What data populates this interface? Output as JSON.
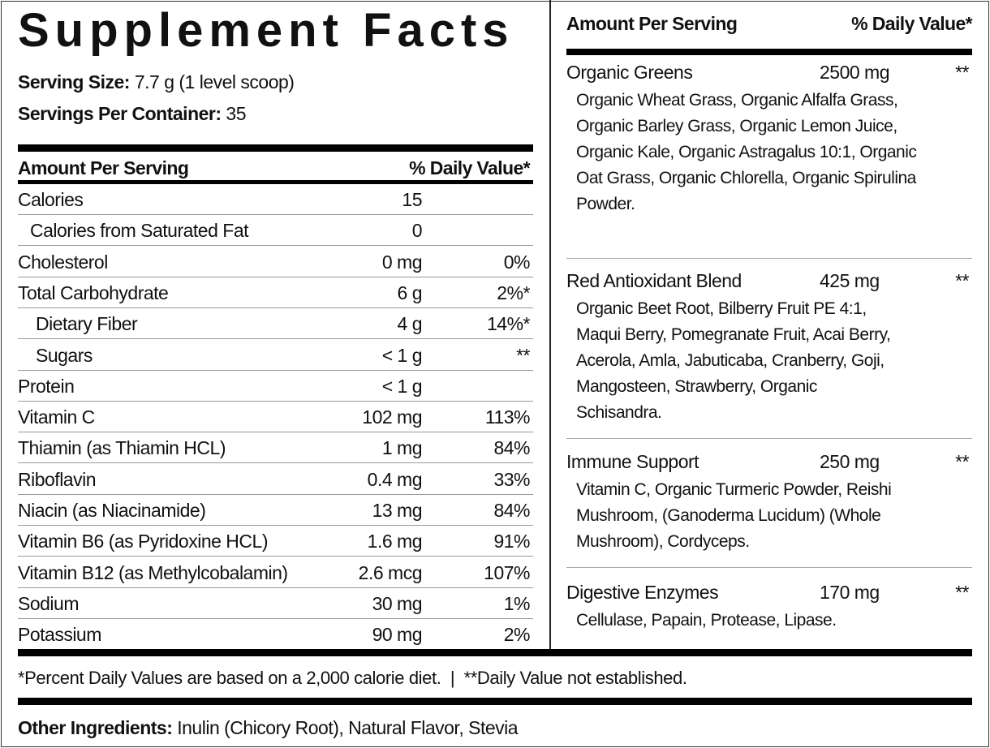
{
  "title": "Supplement Facts",
  "serving_size": {
    "label": "Serving Size:",
    "value": "7.7 g (1 level scoop)"
  },
  "servings_per_container": {
    "label": "Servings Per Container:",
    "value": "35"
  },
  "left_header": {
    "amount": "Amount Per Serving",
    "dv": "% Daily Value*"
  },
  "rows": [
    {
      "name": "Calories",
      "amount": "15",
      "dv": ""
    },
    {
      "name": "Calories from Saturated Fat",
      "amount": "0",
      "dv": "",
      "indent": true
    },
    {
      "name": "Cholesterol",
      "amount": "0 mg",
      "dv": "0%"
    },
    {
      "name": "Total Carbohydrate",
      "amount": "6 g",
      "dv": "2%*"
    },
    {
      "name": "Dietary Fiber",
      "amount": "4 g",
      "dv": "14%*",
      "indent": true
    },
    {
      "name": "Sugars",
      "amount": "< 1 g",
      "dv": "**",
      "indent": true
    },
    {
      "name": "Protein",
      "amount": "< 1 g",
      "dv": ""
    },
    {
      "name": "Vitamin C",
      "amount": "102 mg",
      "dv": "113%"
    },
    {
      "name": "Thiamin (as Thiamin HCL)",
      "amount": "1 mg",
      "dv": "84%"
    },
    {
      "name": "Riboflavin",
      "amount": "0.4 mg",
      "dv": "33%"
    },
    {
      "name": "Niacin (as Niacinamide)",
      "amount": "13 mg",
      "dv": "84%"
    },
    {
      "name": "Vitamin B6 (as Pyridoxine HCL)",
      "amount": "1.6 mg",
      "dv": "91%"
    },
    {
      "name": "Vitamin B12 (as Methylcobalamin)",
      "amount": "2.6 mcg",
      "dv": "107%"
    },
    {
      "name": "Sodium",
      "amount": "30 mg",
      "dv": "1%"
    },
    {
      "name": "Potassium",
      "amount": "90 mg",
      "dv": "2%"
    }
  ],
  "right_header": {
    "amount": "Amount Per Serving",
    "dv": "% Daily Value*"
  },
  "blends": [
    {
      "name": "Organic Greens",
      "amount": "2500 mg",
      "dv": "**",
      "ingredients": "Organic Wheat Grass, Organic Alfalfa Grass, Organic Barley Grass, Organic Lemon Juice, Organic Kale, Organic Astragalus 10:1, Organic Oat Grass, Organic Chlorella, Organic Spirulina Powder."
    },
    {
      "name": "Red Antioxidant Blend",
      "amount": "425 mg",
      "dv": "**",
      "ingredients": "Organic Beet Root, Bilberry Fruit PE 4:1, Maqui Berry, Pomegranate Fruit, Acai Berry, Acerola, Amla, Jabuticaba, Cranberry, Goji, Mangosteen, Strawberry, Organic Schisandra."
    },
    {
      "name": "Immune Support",
      "amount": "250 mg",
      "dv": "**",
      "ingredients": "Vitamin C, Organic Turmeric Powder, Reishi Mushroom, (Ganoderma Lucidum) (Whole Mushroom), Cordyceps."
    },
    {
      "name": "Digestive Enzymes",
      "amount": "170 mg",
      "dv": "**",
      "ingredients": "Cellulase, Papain, Protease, Lipase."
    }
  ],
  "footnote": "*Percent Daily Values are based on a 2,000 calorie diet.  |  **Daily Value not established.",
  "other_ingredients": {
    "label": "Other Ingredients:",
    "value": "Inulin (Chicory Root), Natural Flavor, Stevia"
  }
}
